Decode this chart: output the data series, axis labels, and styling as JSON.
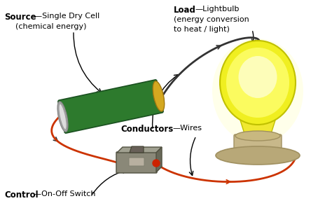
{
  "bg_color": "#ffffff",
  "wire_color": "#cc3300",
  "black_wire_color": "#333333",
  "battery_body_color": "#2d7a2d",
  "battery_left_cap_color": "#aaaaaa",
  "battery_right_cap_color": "#c8a820",
  "switch_body_color": "#8a8070",
  "switch_top_color": "#6a6058",
  "bulb_outer_color": "#f5f530",
  "bulb_inner_color": "#ffff88",
  "bulb_glow_color": "#ffffaa",
  "bulb_base_color": "#c8b88a",
  "bulb_base_rim_color": "#b0a070",
  "source_bold": "Source",
  "source_normal": "—Single Dry Cell\n(chemical energy)",
  "load_bold": "Load",
  "load_normal": "—Lightbulb\n(energy conversion\nto heat / light)",
  "conductors_bold": "Conductors",
  "conductors_normal": "—Wires",
  "control_bold": "Control",
  "control_normal": "—On-Off Switch"
}
